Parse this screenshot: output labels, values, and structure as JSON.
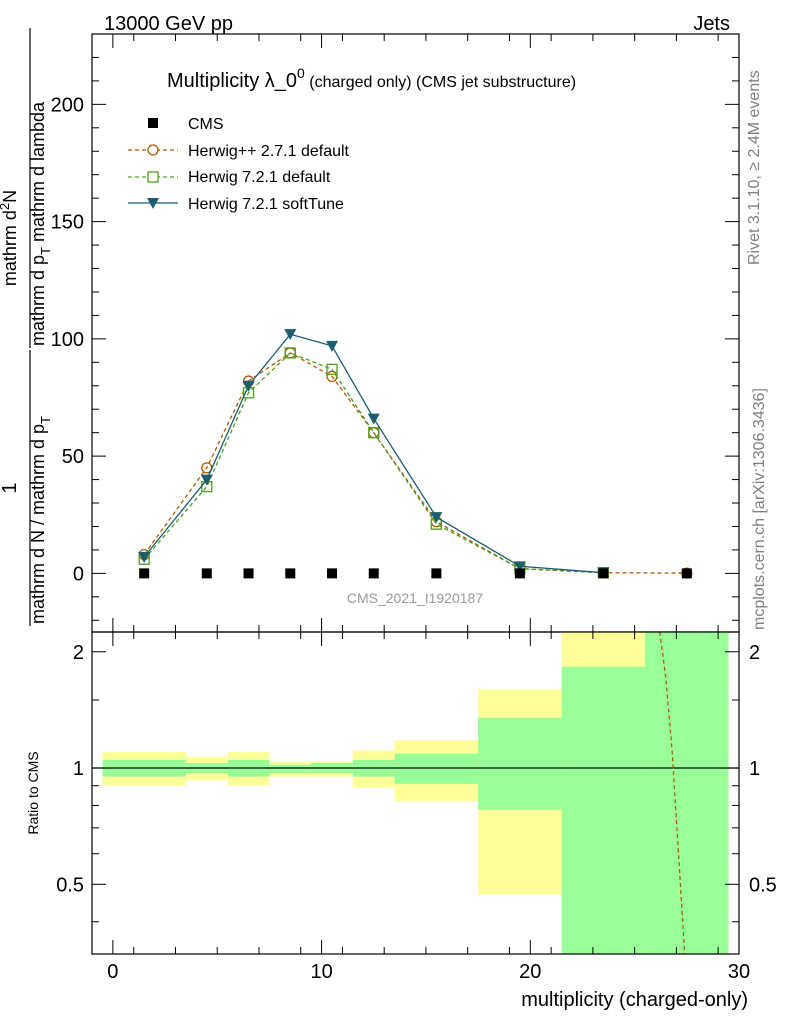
{
  "header": {
    "left": "13000 GeV pp",
    "right": "Jets"
  },
  "side_text": {
    "rivet": "Rivet 3.1.10, ≥ 2.4M events",
    "mcplots": "mcplots.cern.ch [arXiv:1306.3436]"
  },
  "watermark": "CMS_2021_I1920187",
  "chart_data": [
    {
      "type": "line",
      "title_main": "Multiplicity λ_0",
      "title_sup": "0",
      "title_sub": " (charged only) (CMS jet substructure)",
      "ylabel": {
        "frac1_num": "1",
        "frac1_den": "mathrm d N / mathrm d p",
        "frac1_den_sub": "T",
        "frac2_num": "mathrm d",
        "frac2_num_sup": "2",
        "frac2_num_rest": "N",
        "frac2_den": "mathrm d p",
        "frac2_den_sub": "T",
        "frac2_den_rest": " mathrm d lambda"
      },
      "xlim": [
        -1,
        30
      ],
      "ylim": [
        -25,
        230
      ],
      "yticks": [
        0,
        50,
        100,
        150,
        200
      ],
      "yticklabels": [
        "0",
        "50",
        "100",
        "150",
        "200"
      ],
      "legend_position": "top-left",
      "series": [
        {
          "name": "CMS",
          "marker": "square-filled",
          "color": "#000000",
          "x": [
            1.5,
            4.5,
            6.5,
            8.5,
            10.5,
            12.5,
            15.5,
            19.5,
            23.5,
            27.5
          ],
          "y": [
            0,
            0,
            0,
            0,
            0,
            0,
            0,
            0,
            0,
            0
          ]
        },
        {
          "name": "Herwig++ 2.7.1 default",
          "marker": "circle-open",
          "line": "dashed",
          "color": "#b35900",
          "x": [
            1.5,
            4.5,
            6.5,
            8.5,
            10.5,
            12.5,
            15.5,
            19.5,
            23.5,
            27.5
          ],
          "y": [
            8,
            45,
            82,
            94,
            84,
            60,
            22,
            2,
            0.3,
            0.1
          ]
        },
        {
          "name": "Herwig 7.2.1 default",
          "marker": "square-open",
          "line": "dashed",
          "color": "#4aa01f",
          "x": [
            1.5,
            4.5,
            6.5,
            8.5,
            10.5,
            12.5,
            15.5,
            19.5,
            23.5
          ],
          "y": [
            6,
            37,
            77,
            94,
            87,
            60,
            21,
            2,
            0.3
          ]
        },
        {
          "name": "Herwig 7.2.1 softTune",
          "marker": "triangle-down-filled",
          "line": "solid",
          "color": "#1b5e70",
          "x": [
            1.5,
            4.5,
            6.5,
            8.5,
            10.5,
            12.5,
            15.5,
            19.5,
            23.5
          ],
          "y": [
            7,
            40,
            80,
            102,
            97,
            66,
            24,
            3,
            0.3
          ]
        }
      ]
    },
    {
      "type": "area",
      "ylabel": "Ratio to CMS",
      "xlabel": "multiplicity (charged-only)",
      "xlim": [
        -1,
        30
      ],
      "ylim": [
        0.33,
        2.25
      ],
      "yticks": [
        0.5,
        1,
        2
      ],
      "yticklabels": [
        "0.5",
        "1",
        "2"
      ],
      "xticks": [
        0,
        10,
        20,
        30
      ],
      "xticklabels": [
        "0",
        "10",
        "20",
        "30"
      ],
      "bands": [
        {
          "x0": -0.5,
          "x1": 3.5,
          "y_in": [
            0.95,
            1.05
          ],
          "y_out": [
            0.9,
            1.1
          ]
        },
        {
          "x0": 3.5,
          "x1": 5.5,
          "y_in": [
            0.97,
            1.03
          ],
          "y_out": [
            0.93,
            1.07
          ]
        },
        {
          "x0": 5.5,
          "x1": 7.5,
          "y_in": [
            0.95,
            1.05
          ],
          "y_out": [
            0.9,
            1.1
          ]
        },
        {
          "x0": 7.5,
          "x1": 9.5,
          "y_in": [
            0.97,
            1.02
          ],
          "y_out": [
            0.95,
            1.04
          ]
        },
        {
          "x0": 9.5,
          "x1": 11.5,
          "y_in": [
            0.97,
            1.03
          ],
          "y_out": [
            0.95,
            1.04
          ]
        },
        {
          "x0": 11.5,
          "x1": 13.5,
          "y_in": [
            0.95,
            1.05
          ],
          "y_out": [
            0.89,
            1.11
          ]
        },
        {
          "x0": 13.5,
          "x1": 17.5,
          "y_in": [
            0.91,
            1.09
          ],
          "y_out": [
            0.82,
            1.18
          ]
        },
        {
          "x0": 17.5,
          "x1": 21.5,
          "y_in": [
            0.78,
            1.35
          ],
          "y_out": [
            0.47,
            1.6
          ]
        },
        {
          "x0": 21.5,
          "x1": 25.5,
          "y_in": [
            0.33,
            1.83
          ],
          "y_out": [
            0.33,
            2.25
          ]
        },
        {
          "x0": 25.5,
          "x1": 29.5,
          "y_in": [
            0.33,
            2.25
          ],
          "y_out": [
            0.33,
            2.25
          ]
        }
      ],
      "series": [
        {
          "name": "Herwig++ 2.7.1 default",
          "line": "dashed",
          "color": "#b35900",
          "x": [
            26.2,
            26.5,
            26.8,
            27.1,
            27.4
          ],
          "y": [
            2.25,
            1.7,
            1.1,
            0.6,
            0.33
          ]
        }
      ]
    }
  ],
  "colors": {
    "band_inner": "#99ff99",
    "band_outer": "#ffff99"
  }
}
